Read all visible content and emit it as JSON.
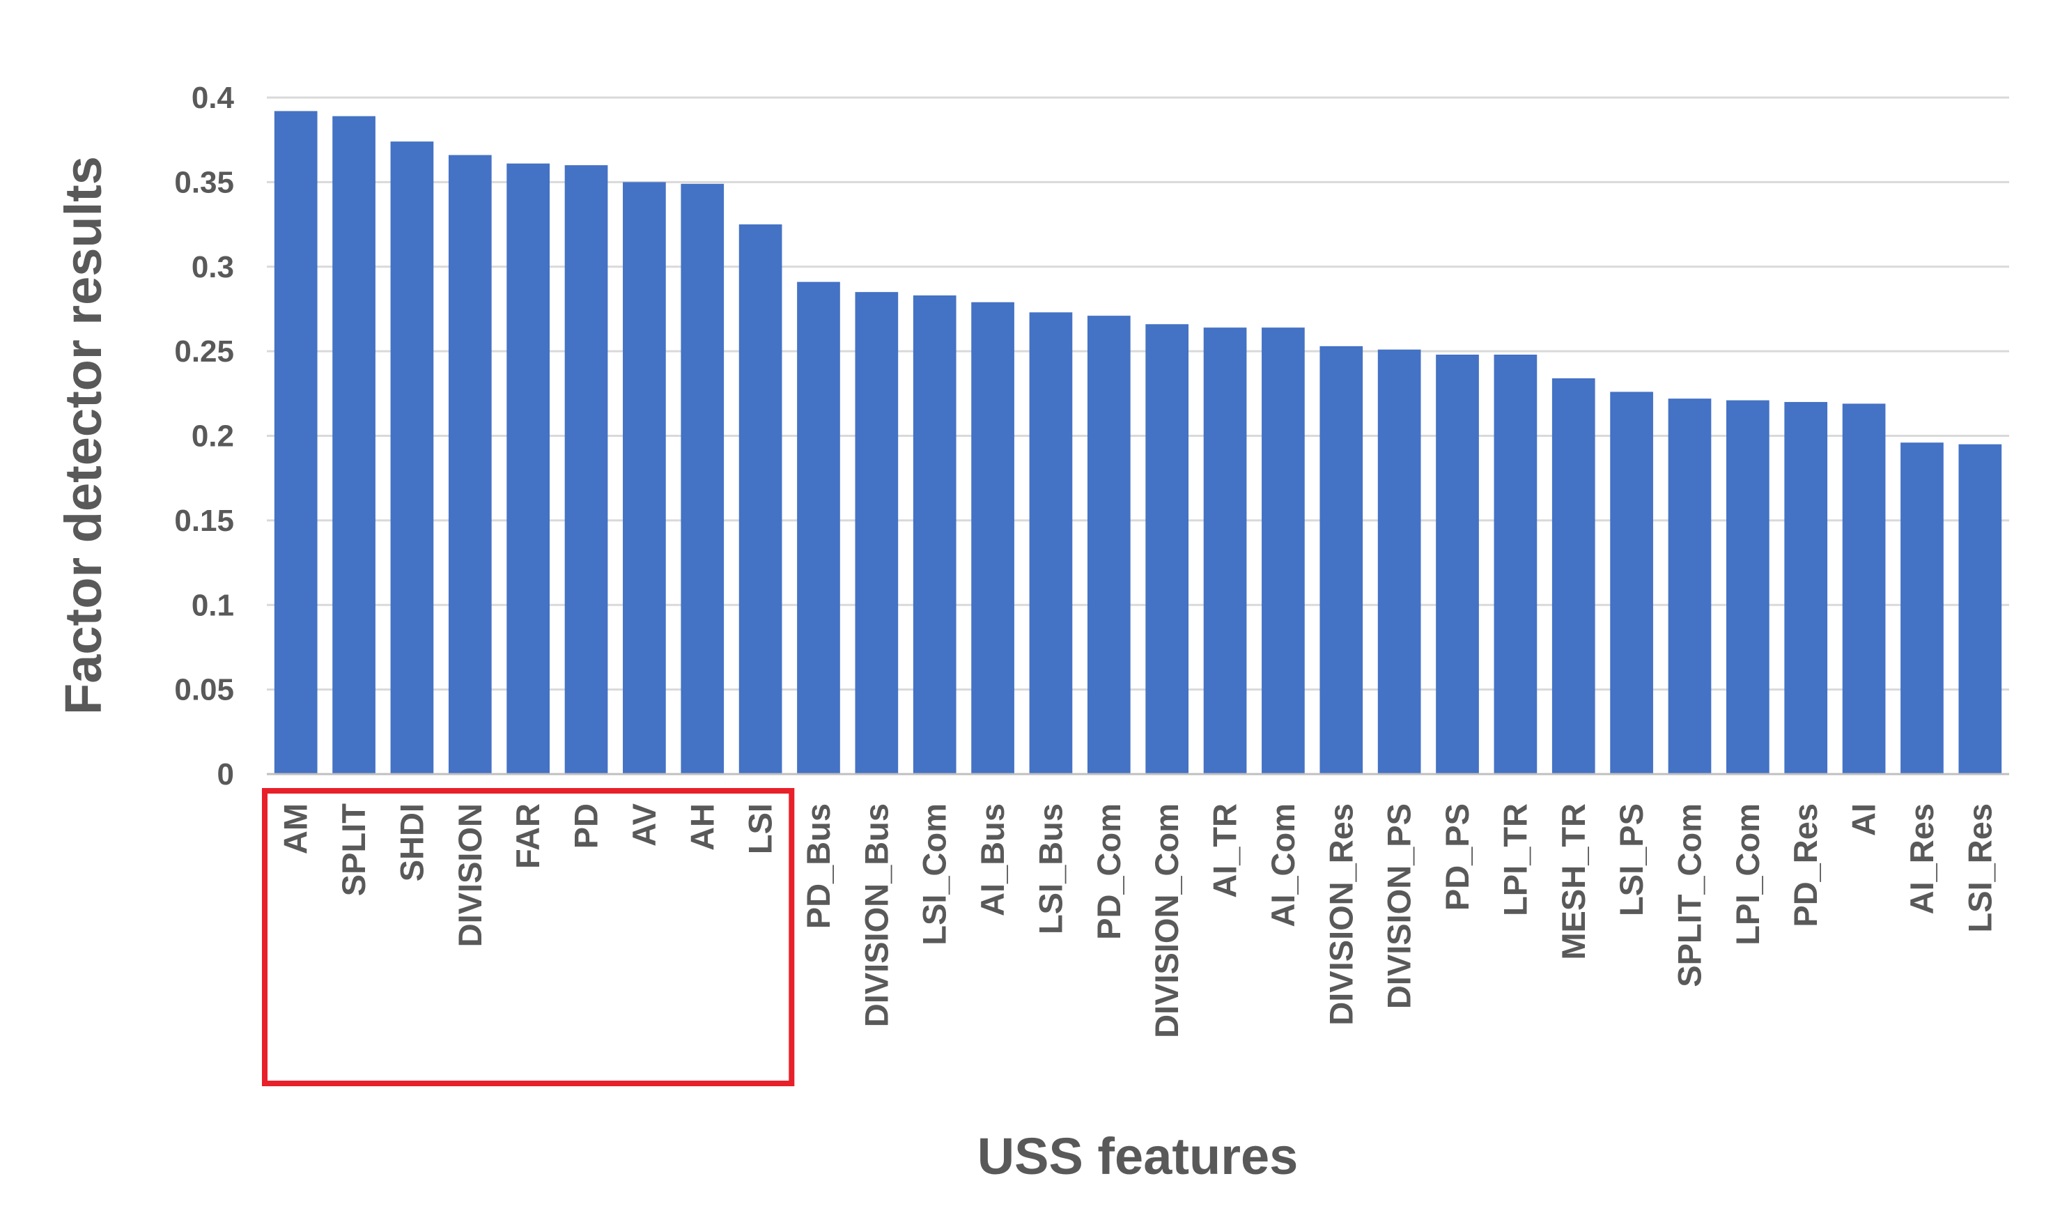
{
  "chart_data": {
    "type": "bar",
    "xlabel": "USS features",
    "ylabel": "Factor detector results",
    "ylim": [
      0,
      0.4
    ],
    "yticks": [
      "0",
      "0.05",
      "0.1",
      "0.15",
      "0.2",
      "0.25",
      "0.3",
      "0.35",
      "0.4"
    ],
    "grid": true,
    "bar_color": "#4472C4",
    "highlight_color": "#E8202A",
    "highlighted_categories": [
      "AM",
      "SPLIT",
      "SHDI",
      "DIVISION",
      "FAR",
      "PD",
      "AV",
      "AH",
      "LSI"
    ],
    "categories": [
      "AM",
      "SPLIT",
      "SHDI",
      "DIVISION",
      "FAR",
      "PD",
      "AV",
      "AH",
      "LSI",
      "PD_Bus",
      "DIVISION_Bus",
      "LSI_Com",
      "AI_Bus",
      "LSI_Bus",
      "PD_Com",
      "DIVISION_Com",
      "AI_TR",
      "AI_Com",
      "DIVISION_Res",
      "DIVISION_PS",
      "PD_PS",
      "LPI_TR",
      "MESH_TR",
      "LSI_PS",
      "SPLIT_Com",
      "LPI_Com",
      "PD_Res",
      "AI",
      "AI_Res",
      "LSI_Res"
    ],
    "values": [
      0.392,
      0.389,
      0.374,
      0.366,
      0.361,
      0.36,
      0.35,
      0.349,
      0.325,
      0.291,
      0.285,
      0.283,
      0.279,
      0.273,
      0.271,
      0.266,
      0.264,
      0.264,
      0.253,
      0.251,
      0.248,
      0.248,
      0.234,
      0.226,
      0.222,
      0.221,
      0.22,
      0.219,
      0.196,
      0.195
    ]
  }
}
